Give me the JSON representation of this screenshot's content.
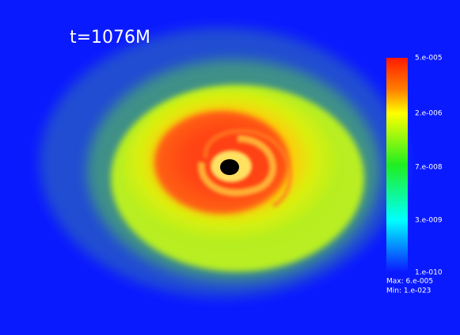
{
  "title": "t=1076M",
  "colorbar": {
    "ticks": [
      "5.e-005",
      "2.e-006",
      "7.e-008",
      "3.e-009",
      "1.e-010"
    ],
    "max": "Max: 6.e-005",
    "min": "Min: 1.e-023"
  }
}
